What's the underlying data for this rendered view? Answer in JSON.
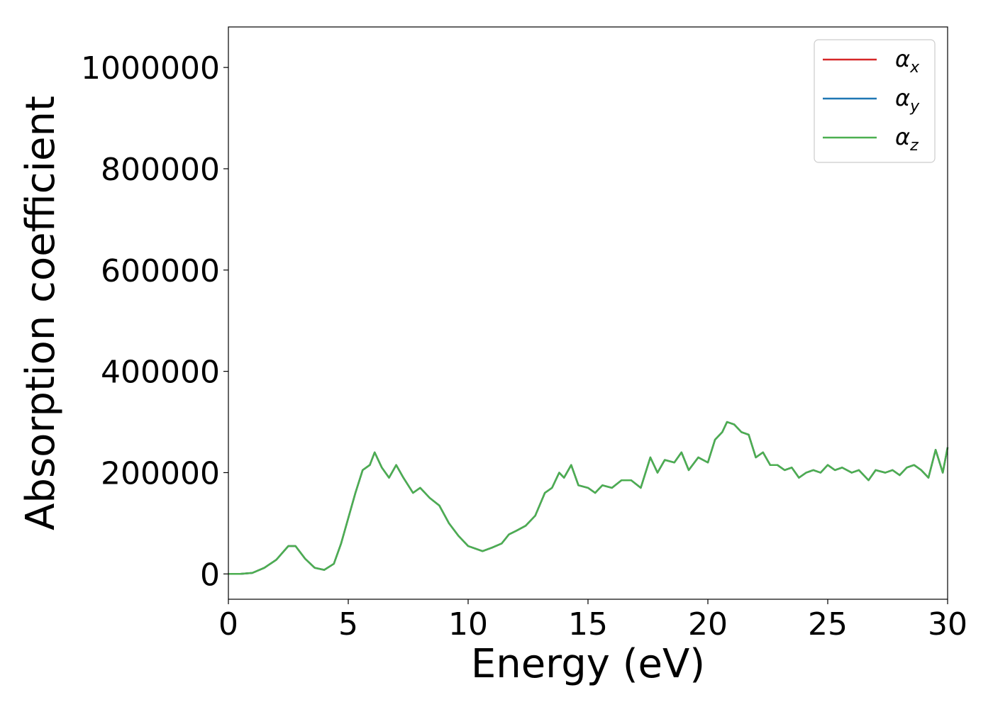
{
  "chart_data": {
    "type": "line",
    "xlabel": "Energy (eV)",
    "ylabel": "Absorption coefficient",
    "xlim": [
      0,
      30
    ],
    "ylim": [
      -50000,
      1080000
    ],
    "xticks": [
      0,
      5,
      10,
      15,
      20,
      25,
      30
    ],
    "xtick_labels": [
      "0",
      "5",
      "10",
      "15",
      "20",
      "25",
      "30"
    ],
    "yticks": [
      0,
      200000,
      400000,
      600000,
      800000,
      1000000
    ],
    "ytick_labels": [
      "0",
      "200000",
      "400000",
      "600000",
      "800000",
      "1000000"
    ],
    "grid": false,
    "legend_position": "top-right",
    "legend": [
      {
        "symbol": "α",
        "subscript": "x",
        "color": "#d62728"
      },
      {
        "symbol": "α",
        "subscript": "y",
        "color": "#1f77b4"
      },
      {
        "symbol": "α",
        "subscript": "z",
        "color": "#4caf50"
      }
    ],
    "x": [
      0,
      0.5,
      1.0,
      1.5,
      2.0,
      2.5,
      2.8,
      3.2,
      3.6,
      4.0,
      4.4,
      4.7,
      5.0,
      5.3,
      5.6,
      5.9,
      6.1,
      6.4,
      6.7,
      7.0,
      7.3,
      7.7,
      8.0,
      8.4,
      8.8,
      9.2,
      9.6,
      10.0,
      10.3,
      10.6,
      11.0,
      11.4,
      11.7,
      12.0,
      12.4,
      12.8,
      13.2,
      13.5,
      13.8,
      14.0,
      14.3,
      14.6,
      15.0,
      15.3,
      15.6,
      16.0,
      16.4,
      16.8,
      17.2,
      17.6,
      17.9,
      18.2,
      18.6,
      18.9,
      19.2,
      19.6,
      20.0,
      20.3,
      20.6,
      20.8,
      21.1,
      21.4,
      21.7,
      22.0,
      22.3,
      22.6,
      22.9,
      23.2,
      23.5,
      23.8,
      24.1,
      24.4,
      24.7,
      25.0,
      25.3,
      25.6,
      26.0,
      26.3,
      26.7,
      27.0,
      27.4,
      27.7,
      28.0,
      28.3,
      28.6,
      28.9,
      29.2,
      29.5,
      29.8,
      30.0
    ],
    "series": [
      {
        "values": [
          0,
          0,
          2000,
          12000,
          28000,
          55000,
          55000,
          30000,
          12000,
          8000,
          20000,
          60000,
          110000,
          160000,
          205000,
          215000,
          240000,
          210000,
          190000,
          215000,
          190000,
          160000,
          170000,
          150000,
          135000,
          100000,
          75000,
          55000,
          50000,
          45000,
          52000,
          60000,
          78000,
          85000,
          95000,
          115000,
          160000,
          170000,
          200000,
          190000,
          215000,
          175000,
          170000,
          160000,
          175000,
          170000,
          185000,
          185000,
          170000,
          230000,
          200000,
          225000,
          220000,
          240000,
          205000,
          230000,
          220000,
          265000,
          280000,
          300000,
          295000,
          280000,
          275000,
          230000,
          240000,
          215000,
          215000,
          205000,
          210000,
          190000,
          200000,
          205000,
          200000,
          215000,
          205000,
          210000,
          200000,
          205000,
          185000,
          205000,
          200000,
          205000,
          195000,
          210000,
          215000,
          205000,
          190000,
          245000,
          200000,
          250000
        ]
      },
      {
        "values": [
          0,
          0,
          2000,
          12000,
          28000,
          55000,
          55000,
          30000,
          12000,
          8000,
          20000,
          60000,
          110000,
          160000,
          205000,
          215000,
          240000,
          210000,
          190000,
          215000,
          190000,
          160000,
          170000,
          150000,
          135000,
          100000,
          75000,
          55000,
          50000,
          45000,
          52000,
          60000,
          78000,
          85000,
          95000,
          115000,
          160000,
          170000,
          200000,
          190000,
          215000,
          175000,
          170000,
          160000,
          175000,
          170000,
          185000,
          185000,
          170000,
          230000,
          200000,
          225000,
          220000,
          240000,
          205000,
          230000,
          220000,
          265000,
          280000,
          300000,
          295000,
          280000,
          275000,
          230000,
          240000,
          215000,
          215000,
          205000,
          210000,
          190000,
          200000,
          205000,
          200000,
          215000,
          205000,
          210000,
          200000,
          205000,
          185000,
          205000,
          200000,
          205000,
          195000,
          210000,
          215000,
          205000,
          190000,
          245000,
          200000,
          250000
        ]
      },
      {
        "values": [
          0,
          0,
          2000,
          12000,
          28000,
          55000,
          55000,
          30000,
          12000,
          8000,
          20000,
          60000,
          110000,
          160000,
          205000,
          215000,
          240000,
          210000,
          190000,
          215000,
          190000,
          160000,
          170000,
          150000,
          135000,
          100000,
          75000,
          55000,
          50000,
          45000,
          52000,
          60000,
          78000,
          85000,
          95000,
          115000,
          160000,
          170000,
          200000,
          190000,
          215000,
          175000,
          170000,
          160000,
          175000,
          170000,
          185000,
          185000,
          170000,
          230000,
          200000,
          225000,
          220000,
          240000,
          205000,
          230000,
          220000,
          265000,
          280000,
          300000,
          295000,
          280000,
          275000,
          230000,
          240000,
          215000,
          215000,
          205000,
          210000,
          190000,
          200000,
          205000,
          200000,
          215000,
          205000,
          210000,
          200000,
          205000,
          185000,
          205000,
          200000,
          205000,
          195000,
          210000,
          215000,
          205000,
          190000,
          245000,
          200000,
          250000
        ]
      }
    ]
  }
}
